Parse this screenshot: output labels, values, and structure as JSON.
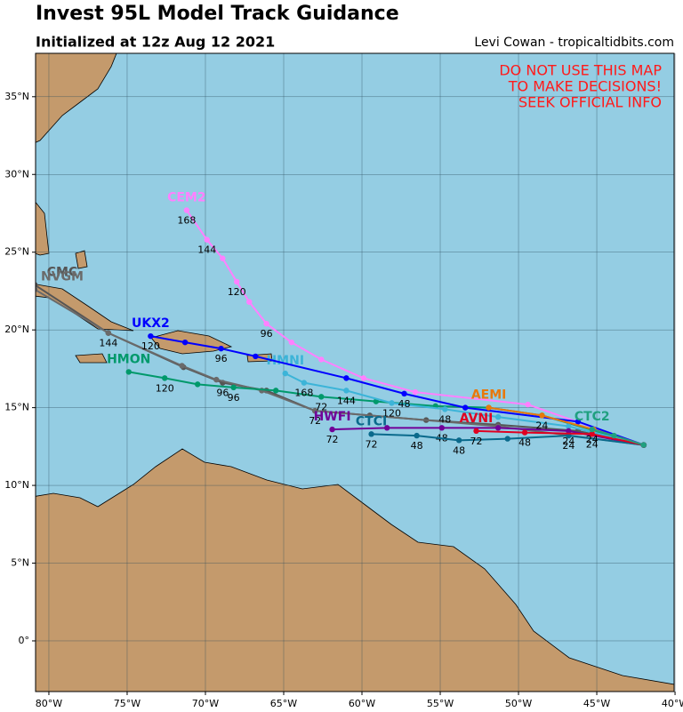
{
  "header": {
    "title": "Invest 95L Model Track Guidance",
    "subtitle": "Initialized at 12z Aug 12 2021",
    "credit": "Levi Cowan - tropicaltidbits.com"
  },
  "warning": [
    "DO NOT USE THIS MAP",
    "TO MAKE DECISIONS!",
    "SEEK OFFICIAL INFO"
  ],
  "map": {
    "lon_lim": [
      -80.85,
      -40.06
    ],
    "lat_lim": [
      -3.26,
      37.79
    ],
    "lon_ticks": [
      {
        "value": -80,
        "label": "80°W"
      },
      {
        "value": -75,
        "label": "75°W"
      },
      {
        "value": -70,
        "label": "70°W"
      },
      {
        "value": -65,
        "label": "65°W"
      },
      {
        "value": -60,
        "label": "60°W"
      },
      {
        "value": -55,
        "label": "55°W"
      },
      {
        "value": -50,
        "label": "50°W"
      },
      {
        "value": -45,
        "label": "45°W"
      },
      {
        "value": -40,
        "label": "40°W"
      }
    ],
    "lat_ticks": [
      {
        "value": 0,
        "label": "0°"
      },
      {
        "value": 5,
        "label": "5°N"
      },
      {
        "value": 10,
        "label": "10°N"
      },
      {
        "value": 15,
        "label": "15°N"
      },
      {
        "value": 20,
        "label": "20°N"
      },
      {
        "value": 25,
        "label": "25°N"
      },
      {
        "value": 30,
        "label": "30°N"
      },
      {
        "value": 35,
        "label": "35°N"
      }
    ],
    "tracks": [
      {
        "name": "CEM2",
        "color": "#ff80ff",
        "lon": [
          -42.0,
          -49.4,
          -56.6,
          -59.9,
          -62.6,
          -64.5,
          -66.1,
          -67.2,
          -68.0,
          -68.9,
          -69.9,
          -71.2
        ],
        "lat": [
          12.6,
          15.2,
          16.0,
          16.9,
          18.1,
          19.2,
          20.4,
          21.8,
          23.1,
          24.6,
          25.8,
          27.7
        ],
        "hours": [
          null,
          null,
          null,
          null,
          null,
          null,
          96,
          null,
          120,
          null,
          144,
          168
        ]
      },
      {
        "name": "CMC",
        "color": "#555555",
        "lon": [
          -42.0,
          -46.2,
          -51.3,
          -55.9,
          -59.5,
          -63.0,
          -66.1,
          -68.9,
          -71.4,
          -76.2,
          -80.9
        ],
        "lat": [
          12.6,
          13.5,
          13.9,
          14.2,
          14.5,
          14.8,
          16.1,
          16.6,
          17.6,
          19.8,
          22.9
        ],
        "hours": [
          null,
          null,
          null,
          null,
          null,
          72,
          null,
          96,
          null,
          null,
          null
        ]
      },
      {
        "name": "NVGM",
        "color": "#6a6a6a",
        "lon": [
          -42.0,
          -51.3,
          -63.0,
          -66.4,
          -69.3,
          -71.5,
          -76.2,
          -80.9
        ],
        "lat": [
          12.6,
          13.8,
          14.8,
          16.1,
          16.8,
          17.7,
          19.8,
          22.6
        ],
        "hours": [
          null,
          null,
          null,
          null,
          null,
          null,
          144,
          null
        ]
      },
      {
        "name": "HMON",
        "color": "#00996b",
        "lon": [
          -42.0,
          -48.5,
          -51.9,
          -55.3,
          -59.1,
          -62.6,
          -65.5,
          -68.2,
          -70.5,
          -72.6,
          -74.9
        ],
        "lat": [
          12.6,
          14.5,
          15.0,
          15.1,
          15.4,
          15.7,
          16.1,
          16.3,
          16.5,
          16.9,
          17.3
        ],
        "hours": [
          null,
          null,
          null,
          null,
          null,
          72,
          null,
          96,
          null,
          120,
          null
        ]
      },
      {
        "name": "HMNI",
        "color": "#3cb4d8",
        "lon": [
          -42.0,
          -46.8,
          -51.3,
          -54.7,
          -58.1,
          -61.0,
          -63.7,
          -64.9
        ],
        "lat": [
          12.6,
          13.8,
          14.4,
          14.9,
          15.3,
          16.1,
          16.6,
          17.2
        ],
        "hours": [
          null,
          null,
          null,
          48,
          120,
          144,
          168,
          null
        ]
      },
      {
        "name": "UKX2",
        "color": "#0000ff",
        "lon": [
          -42.0,
          -46.2,
          -53.4,
          -57.3,
          -61.0,
          -66.8,
          -69.0,
          -71.3,
          -73.5
        ],
        "lat": [
          12.6,
          14.1,
          15.0,
          15.9,
          16.9,
          18.3,
          18.8,
          19.2,
          19.6
        ],
        "hours": [
          null,
          null,
          null,
          48,
          null,
          null,
          96,
          null,
          120
        ]
      },
      {
        "name": "AEMI",
        "color": "#e8780c",
        "lon": [
          -42.0,
          -45.2,
          -48.5,
          -51.9
        ],
        "lat": [
          12.6,
          13.6,
          14.5,
          15.0
        ],
        "hours": [
          null,
          null,
          24,
          null
        ]
      },
      {
        "name": "HWFI",
        "color": "#700098",
        "lon": [
          -42.0,
          -46.8,
          -51.3,
          -54.9,
          -58.4,
          -61.9
        ],
        "lat": [
          12.6,
          13.5,
          13.7,
          13.7,
          13.7,
          13.6
        ],
        "hours": [
          null,
          24,
          null,
          48,
          null,
          72
        ]
      },
      {
        "name": "CTCI",
        "color": "#0a6a8c",
        "lon": [
          -42.0,
          -46.8,
          -50.7,
          -53.8,
          -56.5,
          -59.4
        ],
        "lat": [
          12.6,
          13.2,
          13.0,
          12.9,
          13.2,
          13.3
        ],
        "hours": [
          null,
          24,
          null,
          48,
          48,
          72
        ]
      },
      {
        "name": "AVNI",
        "color": "#e00020",
        "lon": [
          -42.0,
          -45.3,
          -49.6,
          -52.7
        ],
        "lat": [
          12.6,
          13.3,
          13.4,
          13.5
        ],
        "hours": [
          null,
          24,
          48,
          72
        ]
      },
      {
        "name": "CTC2",
        "color": "#20a080",
        "lon": [
          -42.0,
          -43.9,
          -45.3
        ],
        "lat": [
          12.6,
          13.2,
          13.6
        ],
        "hours": [
          null,
          null,
          24
        ]
      }
    ]
  }
}
